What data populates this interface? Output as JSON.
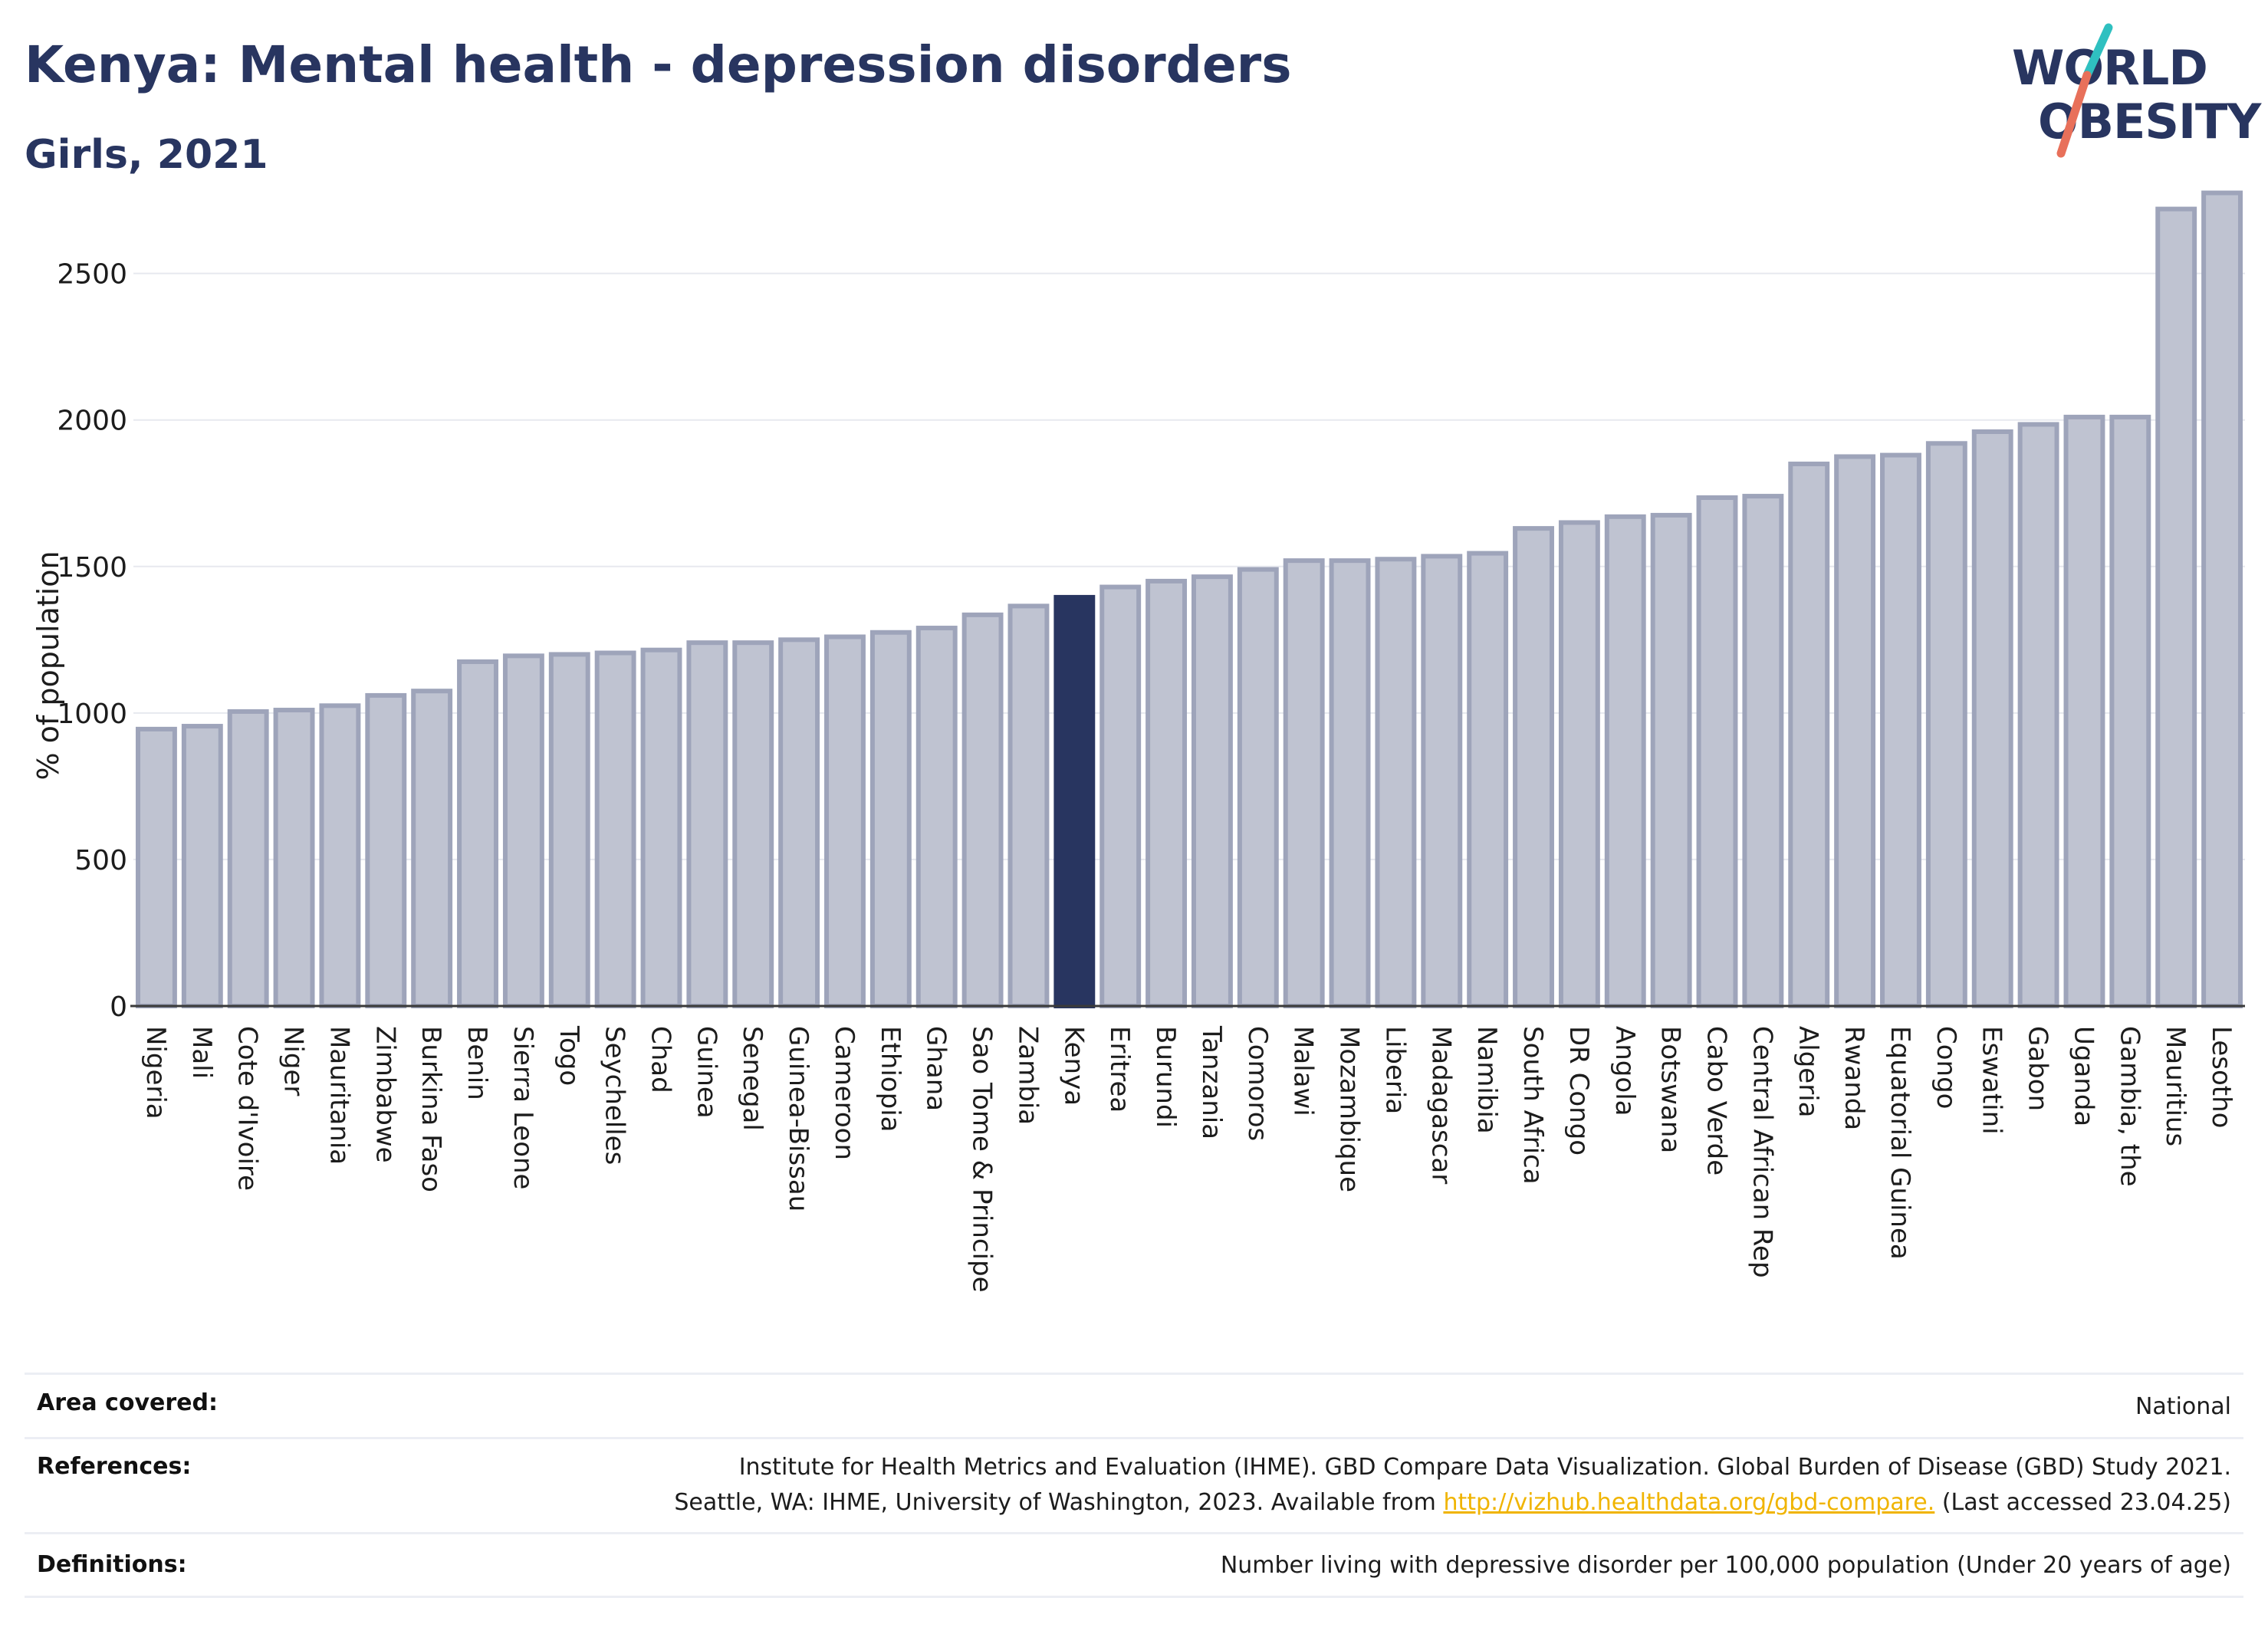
{
  "header": {
    "title": "Kenya: Mental health - depression disorders",
    "subtitle": "Girls, 2021"
  },
  "logo": {
    "line1": "WORLD",
    "line2": "OBESITY",
    "accent_colors": [
      "#2fc0c0",
      "#e8705a"
    ]
  },
  "colors": {
    "bar_fill": "#bfc3d1",
    "bar_stroke": "#9ea4ba",
    "highlight_fill": "#283560",
    "text_dark": "#283560",
    "gridline": "#e7e9ef",
    "link": "#f0b400"
  },
  "chart_data": {
    "type": "bar",
    "title": "Kenya: Mental health - depression disorders",
    "subtitle": "Girls, 2021",
    "xlabel": "",
    "ylabel": "% of population",
    "ylim": [
      0,
      2800
    ],
    "yticks": [
      0,
      500,
      1000,
      1500,
      2000,
      2500
    ],
    "grid": true,
    "highlight": "Kenya",
    "categories": [
      "Nigeria",
      "Mali",
      "Cote d'Ivoire",
      "Niger",
      "Mauritania",
      "Zimbabwe",
      "Burkina Faso",
      "Benin",
      "Sierra Leone",
      "Togo",
      "Seychelles",
      "Chad",
      "Guinea",
      "Senegal",
      "Guinea-Bissau",
      "Cameroon",
      "Ethiopia",
      "Ghana",
      "Sao Tome & Principe",
      "Zambia",
      "Kenya",
      "Eritrea",
      "Burundi",
      "Tanzania",
      "Comoros",
      "Malawi",
      "Mozambique",
      "Liberia",
      "Madagascar",
      "Namibia",
      "South Africa",
      "DR Congo",
      "Angola",
      "Botswana",
      "Cabo Verde",
      "Central African Rep",
      "Algeria",
      "Rwanda",
      "Equatorial Guinea",
      "Congo",
      "Eswatini",
      "Gabon",
      "Uganda",
      "Gambia, the",
      "Mauritius",
      "Lesotho"
    ],
    "values": [
      945,
      955,
      1005,
      1010,
      1025,
      1060,
      1075,
      1175,
      1195,
      1200,
      1205,
      1215,
      1240,
      1240,
      1250,
      1260,
      1275,
      1290,
      1335,
      1365,
      1395,
      1430,
      1450,
      1465,
      1490,
      1520,
      1520,
      1525,
      1535,
      1545,
      1630,
      1650,
      1670,
      1675,
      1735,
      1740,
      1850,
      1875,
      1880,
      1920,
      1960,
      1985,
      2010,
      2010,
      2720,
      2775
    ]
  },
  "footer": {
    "area_label": "Area covered:",
    "area_value": "National",
    "references_label": "References:",
    "references_line1": "Institute for Health Metrics and Evaluation (IHME). GBD Compare Data Visualization. Global Burden of Disease (GBD) Study 2021.",
    "references_line2_pre": "Seattle, WA: IHME, University of Washington, 2023. Available from",
    "references_link": "http://vizhub.healthdata.org/gbd-compare.",
    "references_line2_post": "(Last accessed 23.04.25)",
    "definitions_label": "Definitions:",
    "definitions_value": "Number living with depressive disorder per 100,000 population (Under 20 years of age)"
  }
}
